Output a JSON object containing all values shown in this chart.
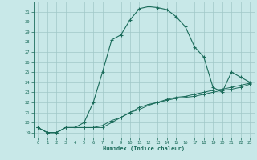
{
  "xlabel": "Humidex (Indice chaleur)",
  "x_hours": [
    0,
    1,
    2,
    3,
    4,
    5,
    6,
    7,
    8,
    9,
    10,
    11,
    12,
    13,
    14,
    15,
    16,
    17,
    18,
    19,
    20,
    21,
    22,
    23
  ],
  "line1_y": [
    19.5,
    19.0,
    19.0,
    19.5,
    19.5,
    20.0,
    22.0,
    25.0,
    28.2,
    28.7,
    30.2,
    31.3,
    31.5,
    31.4,
    31.2,
    30.5,
    29.5,
    27.5,
    26.5,
    23.5,
    23.0,
    25.0,
    24.5,
    24.0
  ],
  "line2_y": [
    19.5,
    19.0,
    19.0,
    19.5,
    19.5,
    19.5,
    19.5,
    19.5,
    20.0,
    20.5,
    21.0,
    21.5,
    21.8,
    22.0,
    22.2,
    22.4,
    22.5,
    22.6,
    22.8,
    23.0,
    23.2,
    23.3,
    23.5,
    23.8
  ],
  "line3_y": [
    19.5,
    19.0,
    19.0,
    19.5,
    19.5,
    19.5,
    19.5,
    19.7,
    20.2,
    20.5,
    21.0,
    21.3,
    21.7,
    22.0,
    22.3,
    22.5,
    22.6,
    22.8,
    23.0,
    23.2,
    23.3,
    23.5,
    23.7,
    23.9
  ],
  "bg_color": "#c8e8e8",
  "grid_color": "#a0c8c8",
  "line_color": "#1a6b5a",
  "ylim": [
    18.5,
    32.0
  ],
  "xlim": [
    -0.5,
    23.5
  ],
  "yticks": [
    19,
    20,
    21,
    22,
    23,
    24,
    25,
    26,
    27,
    28,
    29,
    30,
    31
  ],
  "xticks": [
    0,
    1,
    2,
    3,
    4,
    5,
    6,
    7,
    8,
    9,
    10,
    11,
    12,
    13,
    14,
    15,
    16,
    17,
    18,
    19,
    20,
    21,
    22,
    23
  ]
}
